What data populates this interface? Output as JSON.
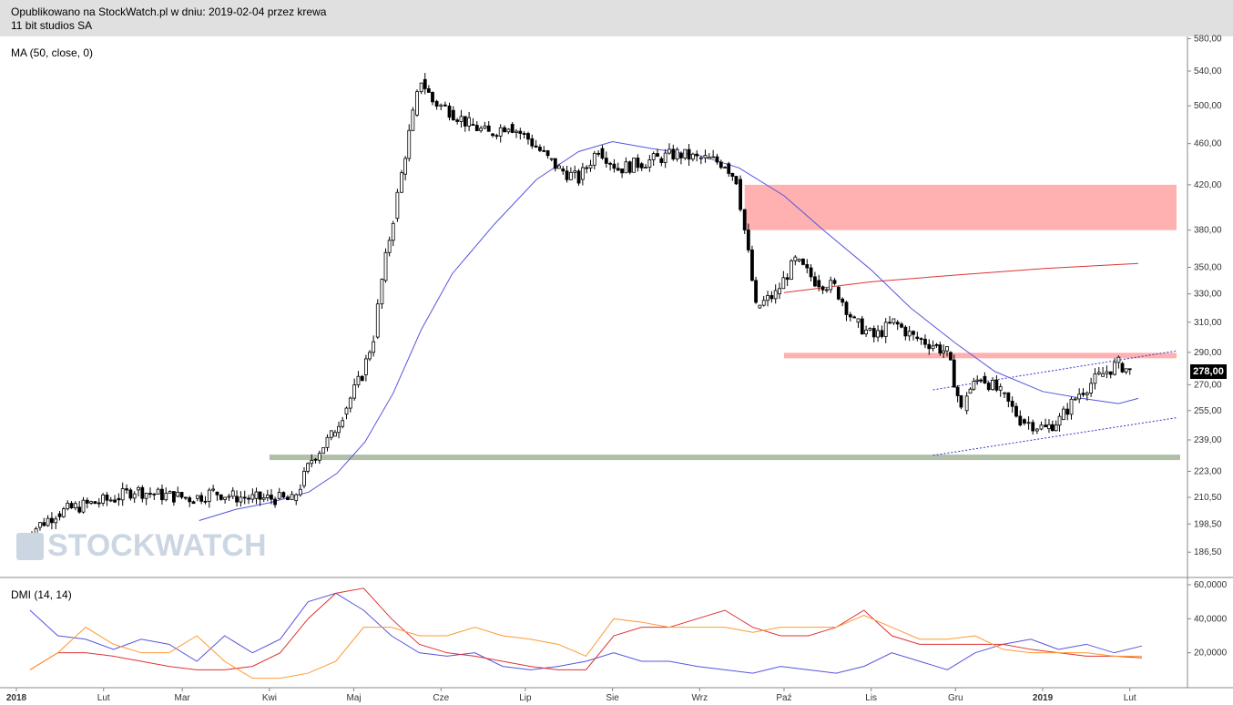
{
  "header": {
    "line1": "Opublikowano na StockWatch.pl w dniu: 2019-02-04 przez krewa",
    "line2": "11 bit studios SA"
  },
  "watermark": "STOCKWATCH",
  "chart_data": [
    {
      "type": "candlestick",
      "title": "11 bit studios SA",
      "indicator_label": "MA (50, close, 0)",
      "y_scale": "log",
      "y_ticks": [
        "580,00",
        "540,00",
        "500,00",
        "460,00",
        "420,00",
        "380,00",
        "350,00",
        "330,00",
        "310,00",
        "290,00",
        "270,00",
        "255,00",
        "239,00",
        "223,00",
        "210,50",
        "198,50",
        "186,50"
      ],
      "x_ticks": [
        "2018",
        "Lut",
        "Mar",
        "Kwi",
        "Maj",
        "Cze",
        "Lip",
        "Sie",
        "Wrz",
        "Paź",
        "Lis",
        "Gru",
        "2019",
        "Lut"
      ],
      "last_price": "278,00",
      "close_path": [
        [
          "2018-01-02",
          190
        ],
        [
          "2018-01-08",
          197
        ],
        [
          "2018-01-15",
          203
        ],
        [
          "2018-01-22",
          206
        ],
        [
          "2018-01-29",
          208
        ],
        [
          "2018-02-05",
          210
        ],
        [
          "2018-02-12",
          214
        ],
        [
          "2018-02-19",
          212
        ],
        [
          "2018-02-26",
          211
        ],
        [
          "2018-03-05",
          210
        ],
        [
          "2018-03-12",
          213
        ],
        [
          "2018-03-19",
          211
        ],
        [
          "2018-03-26",
          210
        ],
        [
          "2018-04-03",
          210
        ],
        [
          "2018-04-09",
          209
        ],
        [
          "2018-04-12",
          216
        ],
        [
          "2018-04-16",
          229
        ],
        [
          "2018-04-23",
          241
        ],
        [
          "2018-04-27",
          253
        ],
        [
          "2018-05-04",
          276
        ],
        [
          "2018-05-08",
          300
        ],
        [
          "2018-05-11",
          340
        ],
        [
          "2018-05-15",
          390
        ],
        [
          "2018-05-18",
          430
        ],
        [
          "2018-05-22",
          490
        ],
        [
          "2018-05-25",
          530
        ],
        [
          "2018-05-29",
          505
        ],
        [
          "2018-06-04",
          495
        ],
        [
          "2018-06-11",
          480
        ],
        [
          "2018-06-18",
          470
        ],
        [
          "2018-06-25",
          480
        ],
        [
          "2018-07-02",
          465
        ],
        [
          "2018-07-09",
          445
        ],
        [
          "2018-07-13",
          435
        ],
        [
          "2018-07-20",
          425
        ],
        [
          "2018-07-27",
          455
        ],
        [
          "2018-08-03",
          435
        ],
        [
          "2018-08-10",
          440
        ],
        [
          "2018-08-17",
          445
        ],
        [
          "2018-08-24",
          450
        ],
        [
          "2018-08-31",
          445
        ],
        [
          "2018-09-03",
          445
        ],
        [
          "2018-09-10",
          440
        ],
        [
          "2018-09-14",
          425
        ],
        [
          "2018-09-17",
          380
        ],
        [
          "2018-09-21",
          320
        ],
        [
          "2018-09-28",
          330
        ],
        [
          "2018-10-05",
          355
        ],
        [
          "2018-10-12",
          340
        ],
        [
          "2018-10-19",
          335
        ],
        [
          "2018-10-26",
          310
        ],
        [
          "2018-11-02",
          300
        ],
        [
          "2018-11-09",
          310
        ],
        [
          "2018-11-16",
          300
        ],
        [
          "2018-11-23",
          295
        ],
        [
          "2018-11-28",
          290
        ],
        [
          "2018-12-03",
          255
        ],
        [
          "2018-12-05",
          265
        ],
        [
          "2018-12-10",
          275
        ],
        [
          "2018-12-17",
          265
        ],
        [
          "2018-12-24",
          250
        ],
        [
          "2019-01-02",
          245
        ],
        [
          "2019-01-07",
          250
        ],
        [
          "2019-01-14",
          265
        ],
        [
          "2019-01-21",
          275
        ],
        [
          "2019-01-28",
          283
        ],
        [
          "2019-02-01",
          278
        ]
      ],
      "overlays": [
        {
          "name": "MA (50, close, 0)",
          "color": "#5555dd"
        },
        {
          "name": "MA 200",
          "color": "#dd3333"
        },
        {
          "name": "resistance zone",
          "range": [
            380,
            420
          ],
          "color": "#ffb0b0"
        },
        {
          "name": "resistance level",
          "value": 288,
          "color": "#ffb0b0"
        },
        {
          "name": "support level",
          "value": 230,
          "color": "#b0c0a8"
        },
        {
          "name": "upper channel",
          "color": "#3333cc",
          "style": "dotted"
        },
        {
          "name": "lower channel",
          "color": "#3333cc",
          "style": "dotted"
        }
      ]
    },
    {
      "type": "line",
      "title": "",
      "indicator_label": "DMI (14, 14)",
      "y_ticks": [
        "60,0000",
        "40,0000",
        "20,0000"
      ],
      "ylim": [
        0,
        60
      ],
      "series": [
        {
          "color": "#5555dd",
          "values": [
            45,
            30,
            28,
            22,
            28,
            25,
            15,
            30,
            20,
            28,
            50,
            55,
            45,
            30,
            20,
            18,
            20,
            12,
            10,
            12,
            15,
            20,
            15,
            15,
            12,
            10,
            8,
            12,
            10,
            8,
            12,
            20,
            15,
            10,
            20,
            25,
            28,
            22,
            25,
            20,
            24
          ]
        },
        {
          "color": "#dd3333",
          "values": [
            10,
            20,
            20,
            18,
            15,
            12,
            10,
            10,
            12,
            20,
            40,
            55,
            58,
            40,
            25,
            20,
            18,
            15,
            12,
            10,
            10,
            30,
            35,
            35,
            40,
            45,
            35,
            30,
            30,
            35,
            45,
            30,
            25,
            25,
            25,
            25,
            22,
            20,
            18,
            18,
            17
          ]
        },
        {
          "color": "#ff9933",
          "values": [
            10,
            20,
            35,
            25,
            20,
            20,
            30,
            15,
            5,
            5,
            8,
            15,
            35,
            35,
            30,
            30,
            35,
            30,
            28,
            25,
            18,
            40,
            38,
            35,
            35,
            35,
            32,
            35,
            35,
            35,
            42,
            35,
            28,
            28,
            30,
            22,
            20,
            20,
            20,
            18,
            18
          ]
        }
      ]
    }
  ]
}
